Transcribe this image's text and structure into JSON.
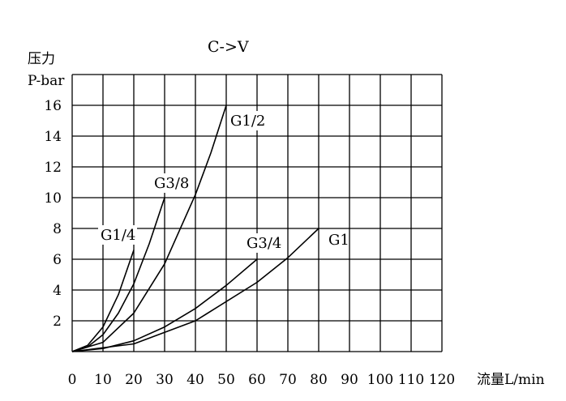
{
  "chart_data": {
    "type": "line",
    "title": "C->V",
    "ylabel_line1": "压力",
    "ylabel_line2": "P-bar",
    "xlabel": "流量L/min",
    "x_ticks": [
      0,
      10,
      20,
      30,
      40,
      50,
      60,
      70,
      80,
      90,
      100,
      110,
      120
    ],
    "y_ticks": [
      2,
      4,
      6,
      8,
      10,
      12,
      14,
      16
    ],
    "xlim": [
      0,
      120
    ],
    "ylim": [
      0,
      18
    ],
    "grid": true,
    "series": [
      {
        "name": "G1/4",
        "x": [
          0,
          5,
          10,
          15,
          20
        ],
        "y": [
          0,
          0.4,
          1.6,
          3.7,
          6.6
        ]
      },
      {
        "name": "G3/8",
        "x": [
          0,
          5,
          10,
          15,
          20,
          25,
          30
        ],
        "y": [
          0,
          0.3,
          1.1,
          2.5,
          4.4,
          7.0,
          10.0
        ]
      },
      {
        "name": "G1/2",
        "x": [
          0,
          10,
          20,
          30,
          40,
          45,
          50
        ],
        "y": [
          0,
          0.6,
          2.5,
          5.7,
          10.2,
          12.9,
          16.0
        ]
      },
      {
        "name": "G3/4",
        "x": [
          0,
          10,
          20,
          30,
          40,
          50,
          60
        ],
        "y": [
          0,
          0.2,
          0.7,
          1.6,
          2.8,
          4.3,
          6.0
        ]
      },
      {
        "name": "G1",
        "x": [
          0,
          20,
          40,
          60,
          70,
          80
        ],
        "y": [
          0,
          0.5,
          2.0,
          4.5,
          6.1,
          8.0
        ]
      }
    ]
  }
}
